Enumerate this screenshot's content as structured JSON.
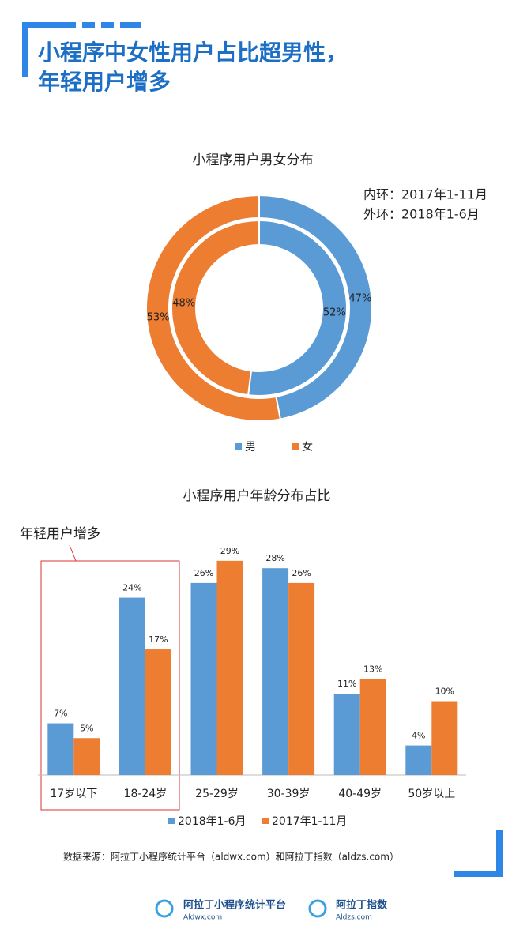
{
  "header": {
    "title_lines": [
      "小程序中女性用户占比超男性，",
      "年轻用户增多"
    ]
  },
  "chart_data": [
    {
      "type": "donut",
      "title": "小程序用户男女分布",
      "categories": [
        "男",
        "女"
      ],
      "colors": [
        "#5b9bd5",
        "#ed7d31"
      ],
      "annotations": [
        "内环：2017年1-11月",
        "外环：2018年1-6月"
      ],
      "rings": [
        {
          "values": [
            52,
            48
          ],
          "value_labels": [
            "52%",
            "48%"
          ]
        },
        {
          "values": [
            47,
            53
          ],
          "value_labels": [
            "47%",
            "53%"
          ]
        }
      ]
    },
    {
      "type": "bar",
      "title": "小程序用户年龄分布占比",
      "annotation": "年轻用户增多",
      "categories": [
        "17岁以下",
        "18-24岁",
        "25-29岁",
        "30-39岁",
        "40-49岁",
        "50岁以上"
      ],
      "series": [
        {
          "name": "2018年1-6月",
          "color": "#5b9bd5",
          "values": [
            7,
            24,
            26,
            28,
            11,
            4
          ],
          "value_labels": [
            "7%",
            "24%",
            "26%",
            "28%",
            "11%",
            "4%"
          ]
        },
        {
          "name": "2017年1-11月",
          "color": "#ed7d31",
          "values": [
            5,
            17,
            29,
            26,
            13,
            10
          ],
          "value_labels": [
            "5%",
            "17%",
            "29%",
            "26%",
            "13%",
            "10%"
          ]
        }
      ]
    }
  ],
  "source": "数据来源：阿拉丁小程序统计平台（aldwx.com）和阿拉丁指数（aldzs.com）",
  "footer": {
    "logos": [
      {
        "name": "阿拉丁小程序统计平台",
        "url": "Aldwx.com"
      },
      {
        "name": "阿拉丁指数",
        "url": "Aldzs.com"
      }
    ]
  }
}
